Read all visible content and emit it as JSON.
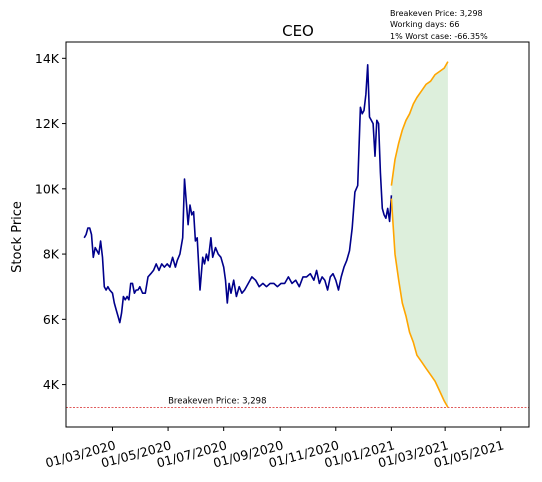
{
  "chart_data": {
    "type": "line",
    "title": "CEO",
    "ylabel": "Stock Price",
    "xlabel": "",
    "x_range": [
      "2020-01-10",
      "2021-06-01"
    ],
    "ylim": [
      2700,
      14500
    ],
    "yticks": [
      4000,
      6000,
      8000,
      10000,
      12000,
      14000
    ],
    "ytick_labels": [
      "4K",
      "6K",
      "8K",
      "10K",
      "12K",
      "14K"
    ],
    "xticks": [
      "2020-03-01",
      "2020-05-01",
      "2020-07-01",
      "2020-09-01",
      "2020-11-01",
      "2021-01-01",
      "2021-03-01",
      "2021-05-01"
    ],
    "xtick_labels": [
      "01/03/2020",
      "01/05/2020",
      "01/07/2020",
      "01/09/2020",
      "01/11/2020",
      "01/01/2021",
      "01/03/2021",
      "01/05/2021"
    ],
    "grid": false,
    "info_lines": [
      "Breakeven Price: 3,298",
      "Working days: 66",
      "1% Worst case: -66.35%"
    ],
    "breakeven": {
      "value": 3298,
      "label": "Breakeven Price: 3,298",
      "color": "#d62728"
    },
    "series": [
      {
        "role": "history",
        "color": "#00008b",
        "points": [
          [
            "2020-01-30",
            8500
          ],
          [
            "2020-02-01",
            8600
          ],
          [
            "2020-02-03",
            8800
          ],
          [
            "2020-02-05",
            8800
          ],
          [
            "2020-02-07",
            8600
          ],
          [
            "2020-02-09",
            7900
          ],
          [
            "2020-02-11",
            8200
          ],
          [
            "2020-02-13",
            8100
          ],
          [
            "2020-02-15",
            8000
          ],
          [
            "2020-02-17",
            8400
          ],
          [
            "2020-02-19",
            7900
          ],
          [
            "2020-02-21",
            7000
          ],
          [
            "2020-02-23",
            6900
          ],
          [
            "2020-02-25",
            7000
          ],
          [
            "2020-02-27",
            6900
          ],
          [
            "2020-03-01",
            6800
          ],
          [
            "2020-03-03",
            6500
          ],
          [
            "2020-03-05",
            6300
          ],
          [
            "2020-03-07",
            6100
          ],
          [
            "2020-03-09",
            5900
          ],
          [
            "2020-03-11",
            6200
          ],
          [
            "2020-03-13",
            6700
          ],
          [
            "2020-03-15",
            6600
          ],
          [
            "2020-03-17",
            6700
          ],
          [
            "2020-03-19",
            6600
          ],
          [
            "2020-03-21",
            7100
          ],
          [
            "2020-03-23",
            7100
          ],
          [
            "2020-03-25",
            6800
          ],
          [
            "2020-03-27",
            6900
          ],
          [
            "2020-03-29",
            6900
          ],
          [
            "2020-03-31",
            7000
          ],
          [
            "2020-04-03",
            6800
          ],
          [
            "2020-04-06",
            6800
          ],
          [
            "2020-04-09",
            7300
          ],
          [
            "2020-04-12",
            7400
          ],
          [
            "2020-04-15",
            7500
          ],
          [
            "2020-04-18",
            7700
          ],
          [
            "2020-04-21",
            7500
          ],
          [
            "2020-04-24",
            7700
          ],
          [
            "2020-04-27",
            7600
          ],
          [
            "2020-04-30",
            7700
          ],
          [
            "2020-05-03",
            7600
          ],
          [
            "2020-05-06",
            7900
          ],
          [
            "2020-05-09",
            7600
          ],
          [
            "2020-05-11",
            7800
          ],
          [
            "2020-05-14",
            8000
          ],
          [
            "2020-05-17",
            8500
          ],
          [
            "2020-05-19",
            10300
          ],
          [
            "2020-05-21",
            9600
          ],
          [
            "2020-05-23",
            8900
          ],
          [
            "2020-05-25",
            9500
          ],
          [
            "2020-05-27",
            9200
          ],
          [
            "2020-05-29",
            9300
          ],
          [
            "2020-05-31",
            8400
          ],
          [
            "2020-06-02",
            8500
          ],
          [
            "2020-06-05",
            6900
          ],
          [
            "2020-06-08",
            7900
          ],
          [
            "2020-06-10",
            7700
          ],
          [
            "2020-06-12",
            8000
          ],
          [
            "2020-06-14",
            7800
          ],
          [
            "2020-06-17",
            8500
          ],
          [
            "2020-06-19",
            7900
          ],
          [
            "2020-06-22",
            8200
          ],
          [
            "2020-06-25",
            8000
          ],
          [
            "2020-06-28",
            7900
          ],
          [
            "2020-07-01",
            7600
          ],
          [
            "2020-07-03",
            7200
          ],
          [
            "2020-07-05",
            6500
          ],
          [
            "2020-07-07",
            7100
          ],
          [
            "2020-07-09",
            6800
          ],
          [
            "2020-07-12",
            7200
          ],
          [
            "2020-07-15",
            6700
          ],
          [
            "2020-07-18",
            7000
          ],
          [
            "2020-07-21",
            6800
          ],
          [
            "2020-07-24",
            6900
          ],
          [
            "2020-07-28",
            7100
          ],
          [
            "2020-08-01",
            7300
          ],
          [
            "2020-08-05",
            7200
          ],
          [
            "2020-08-09",
            7000
          ],
          [
            "2020-08-13",
            7100
          ],
          [
            "2020-08-17",
            7000
          ],
          [
            "2020-08-21",
            7100
          ],
          [
            "2020-08-25",
            7100
          ],
          [
            "2020-08-29",
            7000
          ],
          [
            "2020-09-02",
            7100
          ],
          [
            "2020-09-06",
            7100
          ],
          [
            "2020-09-10",
            7300
          ],
          [
            "2020-09-14",
            7100
          ],
          [
            "2020-09-18",
            7200
          ],
          [
            "2020-09-22",
            7000
          ],
          [
            "2020-09-26",
            7300
          ],
          [
            "2020-09-30",
            7300
          ],
          [
            "2020-10-04",
            7400
          ],
          [
            "2020-10-08",
            7200
          ],
          [
            "2020-10-11",
            7500
          ],
          [
            "2020-10-14",
            7100
          ],
          [
            "2020-10-17",
            7300
          ],
          [
            "2020-10-20",
            7200
          ],
          [
            "2020-10-23",
            6900
          ],
          [
            "2020-10-26",
            7300
          ],
          [
            "2020-10-29",
            7400
          ],
          [
            "2020-11-01",
            7200
          ],
          [
            "2020-11-04",
            6900
          ],
          [
            "2020-11-07",
            7300
          ],
          [
            "2020-11-10",
            7600
          ],
          [
            "2020-11-13",
            7800
          ],
          [
            "2020-11-16",
            8100
          ],
          [
            "2020-11-19",
            8800
          ],
          [
            "2020-11-22",
            9900
          ],
          [
            "2020-11-25",
            10100
          ],
          [
            "2020-11-28",
            12500
          ],
          [
            "2020-11-30",
            12300
          ],
          [
            "2020-12-02",
            12400
          ],
          [
            "2020-12-04",
            12900
          ],
          [
            "2020-12-06",
            13800
          ],
          [
            "2020-12-08",
            12200
          ],
          [
            "2020-12-10",
            12100
          ],
          [
            "2020-12-12",
            12000
          ],
          [
            "2020-12-14",
            11000
          ],
          [
            "2020-12-16",
            12100
          ],
          [
            "2020-12-18",
            12000
          ],
          [
            "2020-12-20",
            10500
          ],
          [
            "2020-12-22",
            9400
          ],
          [
            "2020-12-24",
            9200
          ],
          [
            "2020-12-26",
            9100
          ],
          [
            "2020-12-28",
            9400
          ],
          [
            "2020-12-30",
            9000
          ],
          [
            "2021-01-01",
            9800
          ]
        ]
      },
      {
        "role": "forecast_upper",
        "color": "#ffa500",
        "points": [
          [
            "2021-01-01",
            10100
          ],
          [
            "2021-01-05",
            10900
          ],
          [
            "2021-01-09",
            11400
          ],
          [
            "2021-01-13",
            11800
          ],
          [
            "2021-01-17",
            12100
          ],
          [
            "2021-01-21",
            12300
          ],
          [
            "2021-01-25",
            12600
          ],
          [
            "2021-01-29",
            12800
          ],
          [
            "2021-02-03",
            13000
          ],
          [
            "2021-02-08",
            13200
          ],
          [
            "2021-02-13",
            13300
          ],
          [
            "2021-02-18",
            13500
          ],
          [
            "2021-02-23",
            13600
          ],
          [
            "2021-02-28",
            13700
          ],
          [
            "2021-03-04",
            13900
          ]
        ]
      },
      {
        "role": "forecast_lower",
        "color": "#ffa500",
        "points": [
          [
            "2021-01-01",
            9700
          ],
          [
            "2021-01-05",
            8000
          ],
          [
            "2021-01-09",
            7200
          ],
          [
            "2021-01-13",
            6500
          ],
          [
            "2021-01-17",
            6100
          ],
          [
            "2021-01-21",
            5600
          ],
          [
            "2021-01-25",
            5300
          ],
          [
            "2021-01-29",
            4900
          ],
          [
            "2021-02-03",
            4700
          ],
          [
            "2021-02-08",
            4500
          ],
          [
            "2021-02-13",
            4300
          ],
          [
            "2021-02-18",
            4100
          ],
          [
            "2021-02-23",
            3800
          ],
          [
            "2021-02-28",
            3500
          ],
          [
            "2021-03-04",
            3300
          ]
        ]
      }
    ],
    "band_color": "#d7ecd6"
  }
}
